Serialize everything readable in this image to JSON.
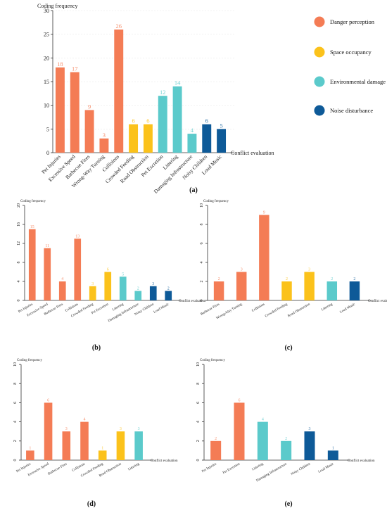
{
  "colors": {
    "danger": "#F47C55",
    "space": "#FBC21B",
    "environment": "#5BCACB",
    "noise": "#0E5A98"
  },
  "legend": [
    {
      "label": "Danger perception",
      "color": "#F47C55"
    },
    {
      "label": "Space occupancy",
      "color": "#FBC21B"
    },
    {
      "label": "Environmental damage",
      "color": "#5BCACB"
    },
    {
      "label": "Noise disturbance",
      "color": "#0E5A98"
    }
  ],
  "chart_data": [
    {
      "type": "bar",
      "panel": "(a)",
      "ylabel": "Coding frequency",
      "xlabel": "Conflict evaluation",
      "ylim": [
        0,
        30
      ],
      "yticks": [
        0,
        5,
        10,
        15,
        20,
        25,
        30
      ],
      "categories": [
        "Pet Injuries",
        "Excessive Speed",
        "Barbecue Fires",
        "Wrong-Way Turning",
        "Collisions",
        "Crowded Feeding",
        "Road Obstruction",
        "Pet Excretion",
        "Littering",
        "Damaging Infrastructure",
        "Noisy Children",
        "Loud Music"
      ],
      "values": [
        18,
        17,
        9,
        3,
        26,
        6,
        6,
        12,
        14,
        4,
        6,
        5
      ],
      "groups": [
        "danger",
        "danger",
        "danger",
        "danger",
        "danger",
        "space",
        "space",
        "environment",
        "environment",
        "environment",
        "noise",
        "noise"
      ]
    },
    {
      "type": "bar",
      "panel": "(b)",
      "ylabel": "Coding frequency",
      "xlabel": "Conflict evaluation",
      "ylim": [
        0,
        20
      ],
      "yticks": [
        0,
        4,
        8,
        12,
        16,
        20
      ],
      "categories": [
        "Pet Injuries",
        "Excessive Speed",
        "Barbecue Fires",
        "Collisions",
        "Crowded Feeding",
        "Pet Excretion",
        "Littering",
        "Damaging Infrastructure",
        "Noisy Children",
        "Loud Music"
      ],
      "values": [
        15,
        11,
        4,
        13,
        3,
        6,
        5,
        2,
        3,
        2
      ],
      "groups": [
        "danger",
        "danger",
        "danger",
        "danger",
        "space",
        "space",
        "environment",
        "environment",
        "noise",
        "noise"
      ]
    },
    {
      "type": "bar",
      "panel": "(c)",
      "ylabel": "Coding frequency",
      "xlabel": "Conflict evaluation",
      "ylim": [
        0,
        10
      ],
      "yticks": [
        0,
        2,
        4,
        6,
        8,
        10
      ],
      "categories": [
        "Barbecue Fires",
        "Wrong-Way Turning",
        "Collisions",
        "Crowded Feeding",
        "Road Obstruction",
        "Littering",
        "Loud Music"
      ],
      "values": [
        2,
        3,
        9,
        2,
        3,
        2,
        2
      ],
      "groups": [
        "danger",
        "danger",
        "danger",
        "space",
        "space",
        "environment",
        "noise"
      ]
    },
    {
      "type": "bar",
      "panel": "(d)",
      "ylabel": "Coding frequency",
      "xlabel": "Conflict evaluation",
      "ylim": [
        0,
        10
      ],
      "yticks": [
        0,
        2,
        4,
        6,
        8,
        10
      ],
      "categories": [
        "Pet Injuries",
        "Excessive Speed",
        "Barbecue Fires",
        "Collisions",
        "Crowded Feeding",
        "Road Obstruction",
        "Littering"
      ],
      "values": [
        1,
        6,
        3,
        4,
        1,
        3,
        3
      ],
      "groups": [
        "danger",
        "danger",
        "danger",
        "danger",
        "space",
        "space",
        "environment"
      ]
    },
    {
      "type": "bar",
      "panel": "(e)",
      "ylabel": "Coding frequency",
      "xlabel": "Conflict evaluation",
      "ylim": [
        0,
        10
      ],
      "yticks": [
        0,
        2,
        4,
        6,
        8,
        10
      ],
      "categories": [
        "Pet Injuries",
        "Pet Excretion",
        "Littering",
        "Damaging Infrastructure",
        "Noisy Children",
        "Loud Music"
      ],
      "values": [
        2,
        6,
        4,
        2,
        3,
        1
      ],
      "groups": [
        "danger",
        "danger",
        "environment",
        "environment",
        "noise",
        "noise"
      ]
    }
  ]
}
